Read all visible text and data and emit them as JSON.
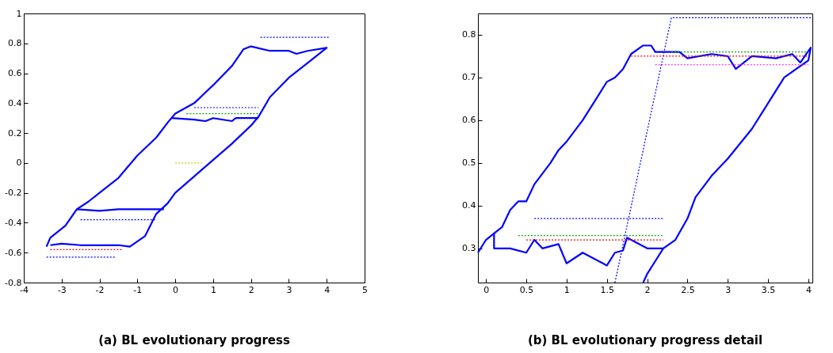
{
  "chart_data": [
    {
      "type": "line",
      "title": "(a) BL evolutionary progress",
      "xlim": [
        -4,
        5
      ],
      "ylim": [
        -0.8,
        1
      ],
      "xticks": [
        -4,
        -3,
        -2,
        -1,
        0,
        1,
        2,
        3,
        4,
        5
      ],
      "yticks": [
        -0.8,
        -0.6,
        -0.4,
        -0.2,
        0,
        0.2,
        0.4,
        0.6,
        0.8,
        1
      ],
      "grid": false,
      "series": [
        {
          "color": "#0000ff",
          "line_style": "solid",
          "x": [
            -3.4,
            -3.3,
            -2.9,
            -2.6,
            -2.3,
            -2,
            -1.5,
            -1,
            -0.5,
            -0.2,
            0,
            0.5,
            1,
            1.5,
            1.8,
            2,
            2.5,
            3,
            3.2,
            3.5,
            4,
            3.5,
            3,
            2.5,
            2.2,
            2,
            1.5,
            1,
            0.5,
            0,
            -0.2,
            -0.5,
            -0.8,
            -1.2,
            -1.5,
            -2,
            -2.5,
            -3,
            -3.3
          ],
          "values": [
            -0.56,
            -0.5,
            -0.42,
            -0.31,
            -0.26,
            -0.2,
            -0.1,
            0.05,
            0.17,
            0.27,
            0.33,
            0.4,
            0.52,
            0.65,
            0.76,
            0.78,
            0.75,
            0.75,
            0.73,
            0.75,
            0.77,
            0.67,
            0.57,
            0.44,
            0.31,
            0.25,
            0.13,
            0.02,
            -0.09,
            -0.2,
            -0.27,
            -0.34,
            -0.49,
            -0.56,
            -0.55,
            -0.55,
            -0.55,
            -0.54,
            -0.55
          ]
        },
        {
          "color": "#0000ff",
          "line_style": "solid",
          "x": [
            -0.1,
            0.5,
            0.8,
            1,
            1.5,
            1.6,
            2.2
          ],
          "values": [
            0.3,
            0.29,
            0.28,
            0.3,
            0.28,
            0.3,
            0.3
          ]
        },
        {
          "color": "#0000ff",
          "line_style": "solid",
          "x": [
            -2.6,
            -2,
            -1.5,
            -1,
            -0.3
          ],
          "values": [
            -0.31,
            -0.32,
            -0.31,
            -0.31,
            -0.31
          ]
        },
        {
          "color": "#0000ff",
          "line_style": "dotted",
          "x": [
            -3.4,
            -1.6
          ],
          "values": [
            -0.63,
            -0.63
          ]
        },
        {
          "color": "#0000ff",
          "line_style": "dotted",
          "x": [
            0.5,
            2.2
          ],
          "values": [
            0.37,
            0.37
          ]
        },
        {
          "color": "#0000ff",
          "line_style": "dotted",
          "x": [
            2.25,
            4.05
          ],
          "values": [
            0.84,
            0.84
          ]
        },
        {
          "color": "#0000ff",
          "line_style": "dotted",
          "x": [
            -2.5,
            -0.5
          ],
          "values": [
            -0.38,
            -0.38
          ]
        },
        {
          "color": "#00aa00",
          "line_style": "dotted",
          "x": [
            0.3,
            2.2
          ],
          "values": [
            0.33,
            0.33
          ]
        },
        {
          "color": "#ff0000",
          "line_style": "dotted",
          "x": [
            -3.3,
            -1.4
          ],
          "values": [
            -0.58,
            -0.58
          ]
        },
        {
          "color": "#cccc00",
          "line_style": "dotted",
          "x": [
            0,
            0.7
          ],
          "values": [
            0,
            0
          ]
        }
      ]
    },
    {
      "type": "line",
      "title": "(b) BL evolutionary progress detail",
      "xlim": [
        -0.1,
        4.05
      ],
      "ylim": [
        0.22,
        0.85
      ],
      "xticks": [
        0,
        0.5,
        1,
        1.5,
        2,
        2.5,
        3,
        3.5,
        4
      ],
      "yticks": [
        0.3,
        0.4,
        0.5,
        0.6,
        0.7,
        0.8
      ],
      "grid": false,
      "series": [
        {
          "color": "#0000ff",
          "line_style": "solid",
          "x": [
            -0.1,
            0,
            0.1,
            0.2,
            0.3,
            0.4,
            0.5,
            0.6,
            0.8,
            0.9,
            1,
            1.2,
            1.4,
            1.5,
            1.6,
            1.7,
            1.8,
            1.95,
            2.05,
            2.1,
            2.4,
            2.5,
            2.8,
            3,
            3.1,
            3.3,
            3.6,
            3.8,
            3.9,
            4.03,
            4,
            3.7,
            3.5,
            3.3,
            3,
            2.8,
            2.6,
            2.5,
            2.35,
            2.2,
            2.1,
            2,
            1.95
          ],
          "values": [
            0.29,
            0.32,
            0.335,
            0.35,
            0.39,
            0.41,
            0.41,
            0.45,
            0.5,
            0.53,
            0.55,
            0.6,
            0.66,
            0.69,
            0.7,
            0.72,
            0.755,
            0.775,
            0.775,
            0.76,
            0.76,
            0.745,
            0.755,
            0.75,
            0.72,
            0.75,
            0.745,
            0.755,
            0.735,
            0.77,
            0.74,
            0.7,
            0.64,
            0.58,
            0.51,
            0.47,
            0.42,
            0.37,
            0.32,
            0.3,
            0.27,
            0.24,
            0.22
          ]
        },
        {
          "color": "#0000ff",
          "line_style": "solid",
          "x": [
            0.1,
            0.1,
            0.3,
            0.5,
            0.6,
            0.7,
            0.9,
            1,
            1.2,
            1.5,
            1.6,
            1.7,
            1.75,
            2,
            2.2
          ],
          "values": [
            0.335,
            0.3,
            0.3,
            0.29,
            0.32,
            0.3,
            0.31,
            0.265,
            0.29,
            0.26,
            0.29,
            0.295,
            0.325,
            0.3,
            0.3
          ]
        },
        {
          "color": "#0000ff",
          "line_style": "dotted",
          "x": [
            1.6,
            2.3,
            4.05
          ],
          "values": [
            0.22,
            0.84,
            0.84
          ]
        },
        {
          "color": "#0000ff",
          "line_style": "dotted",
          "x": [
            0.6,
            2.2
          ],
          "values": [
            0.37,
            0.37
          ]
        },
        {
          "color": "#00aa00",
          "line_style": "dotted",
          "x": [
            0.4,
            2.2
          ],
          "values": [
            0.33,
            0.33
          ]
        },
        {
          "color": "#ff0000",
          "line_style": "dotted",
          "x": [
            0.5,
            2.2
          ],
          "values": [
            0.32,
            0.32
          ]
        },
        {
          "color": "#00aa00",
          "line_style": "dotted",
          "x": [
            2.3,
            4
          ],
          "values": [
            0.76,
            0.76
          ]
        },
        {
          "color": "#ff0000",
          "line_style": "dotted",
          "x": [
            1.8,
            4
          ],
          "values": [
            0.75,
            0.75
          ]
        },
        {
          "color": "#ff00ff",
          "line_style": "dotted",
          "x": [
            2.1,
            4
          ],
          "values": [
            0.73,
            0.73
          ]
        }
      ]
    }
  ]
}
